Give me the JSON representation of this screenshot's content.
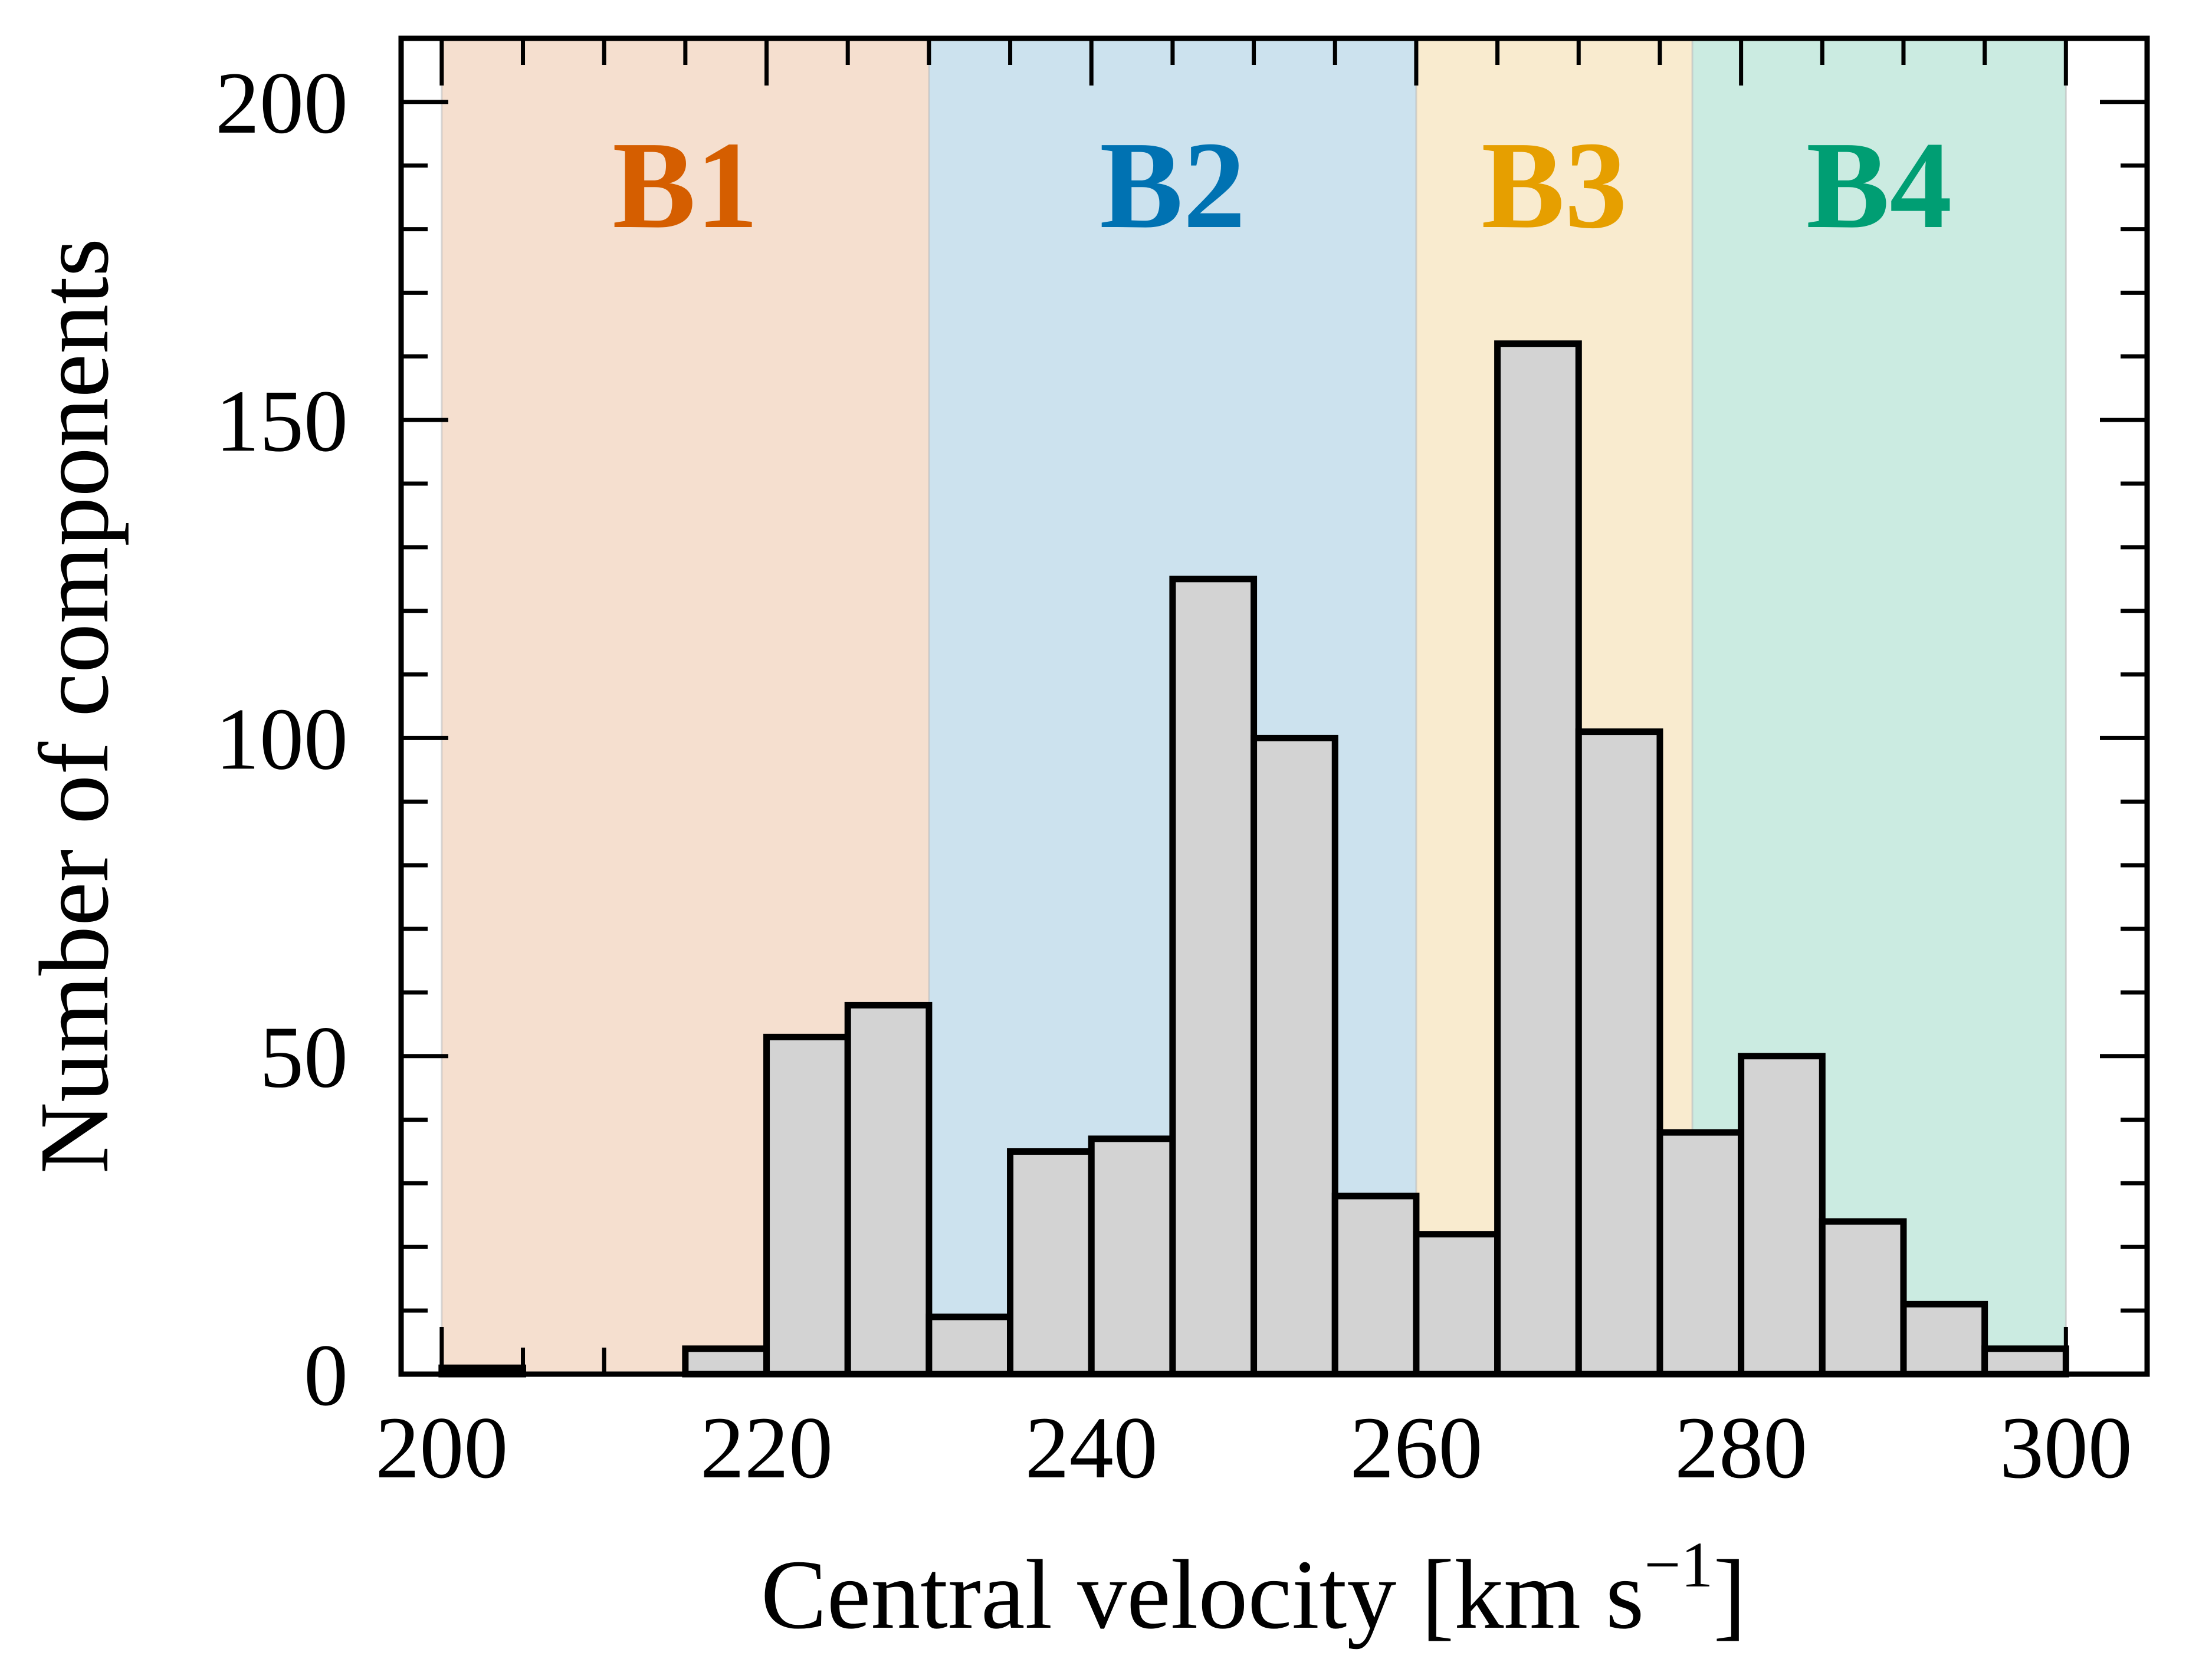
{
  "chart_data": {
    "type": "bar",
    "subtype": "histogram",
    "title": "",
    "xlabel": "Central velocity [km s",
    "xlabel_superscript": "−1",
    "xlabel_close": "]",
    "ylabel": "Number of components",
    "xlim": [
      197.5,
      305
    ],
    "ylim": [
      0,
      210
    ],
    "grid": false,
    "bin_width": 5,
    "bin_edges": [
      200,
      205,
      210,
      215,
      220,
      225,
      230,
      235,
      240,
      245,
      250,
      255,
      260,
      265,
      270,
      275,
      280,
      285,
      290,
      295,
      300
    ],
    "values": [
      1,
      0,
      0,
      4,
      53,
      58,
      9,
      35,
      37,
      125,
      100,
      28,
      22,
      162,
      101,
      38,
      50,
      24,
      11,
      4
    ],
    "bar_color": "#d3d3d3",
    "bar_edge_color": "#000000",
    "x_ticks": [
      {
        "value": 200,
        "label": "200"
      },
      {
        "value": 220,
        "label": "220"
      },
      {
        "value": 240,
        "label": "240"
      },
      {
        "value": 260,
        "label": "260"
      },
      {
        "value": 280,
        "label": "280"
      },
      {
        "value": 300,
        "label": "300"
      }
    ],
    "x_minor_step": 5,
    "y_ticks": [
      {
        "value": 0,
        "label": "0"
      },
      {
        "value": 50,
        "label": "50"
      },
      {
        "value": 100,
        "label": "100"
      },
      {
        "value": 150,
        "label": "150"
      },
      {
        "value": 200,
        "label": "200"
      }
    ],
    "y_minor_step": 10,
    "bands": [
      {
        "label": "B1",
        "x_start": 200,
        "x_end": 230,
        "fill": "#f5dfcf",
        "text_color": "#d55e00"
      },
      {
        "label": "B2",
        "x_start": 230,
        "x_end": 260,
        "fill": "#cce2ee",
        "text_color": "#0072b2"
      },
      {
        "label": "B3",
        "x_start": 260,
        "x_end": 277,
        "fill": "#f9ebcf",
        "text_color": "#e69f00"
      },
      {
        "label": "B4",
        "x_start": 277,
        "x_end": 300,
        "fill": "#cbebe1",
        "text_color": "#009e73"
      }
    ]
  }
}
